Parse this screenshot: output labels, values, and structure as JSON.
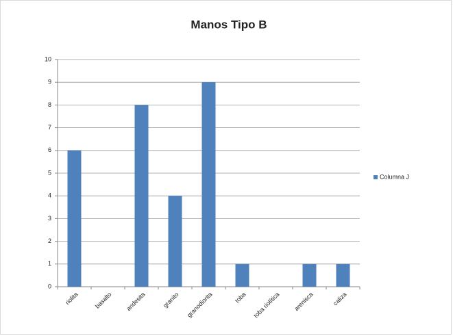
{
  "chart_data": {
    "type": "bar",
    "title": "Manos Tipo B",
    "categories": [
      "riolita",
      "basalto",
      "andesita",
      "granito",
      "granodiorita",
      "toba",
      "toba riolítica",
      "arenisca",
      "caliza"
    ],
    "series": [
      {
        "name": "Columna J",
        "color": "#4f81bd",
        "values": [
          6,
          0,
          8,
          4,
          9,
          1,
          0,
          1,
          1
        ]
      }
    ],
    "ylim": [
      0,
      10
    ],
    "yticks": [
      0,
      1,
      2,
      3,
      4,
      5,
      6,
      7,
      8,
      9,
      10
    ],
    "grid": true,
    "legend": "right"
  }
}
